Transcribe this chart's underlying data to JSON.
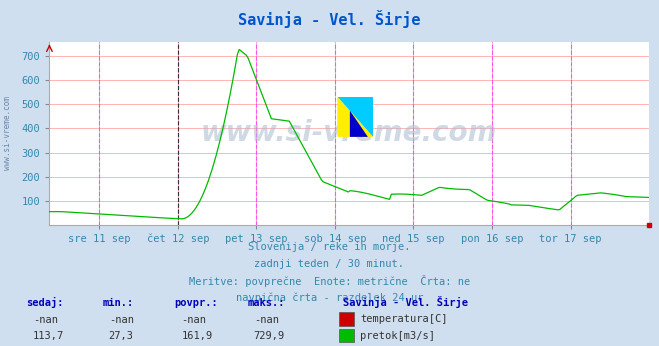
{
  "title": "Savinja - Vel. Širje",
  "title_color": "#0055cc",
  "bg_color": "#d0dff0",
  "plot_bg_color": "#ffffff",
  "grid_h_color": "#ffaaaa",
  "vline_color": "#ff44ff",
  "black_vline_pos": 0.2143,
  "xlabel_color": "#3388aa",
  "text_info_color": "#3388aa",
  "watermark": "www.si-vreme.com",
  "subtitle_lines": [
    "Slovenija / reke in morje.",
    "zadnji teden / 30 minut.",
    "Meritve: povprečne  Enote: metrične  Črta: ne",
    "navpična črta - razdelek 24 ur"
  ],
  "legend_title": "Savinja - Vel. Širje",
  "legend_entries": [
    {
      "label": "temperatura[C]",
      "color": "#cc0000"
    },
    {
      "label": "pretok[m3/s]",
      "color": "#00bb00"
    }
  ],
  "stats_headers": [
    "sedaj:",
    "min.:",
    "povpr.:",
    "maks.:"
  ],
  "stats_temp": [
    "-nan",
    "-nan",
    "-nan",
    "-nan"
  ],
  "stats_pretok": [
    "113,7",
    "27,3",
    "161,9",
    "729,9"
  ],
  "ylim": [
    0,
    760
  ],
  "yticks": [
    100,
    200,
    300,
    400,
    500,
    600,
    700
  ],
  "x_day_labels": [
    "sre 11 sep",
    "čet 12 sep",
    "pet 13 sep",
    "sob 14 sep",
    "ned 15 sep",
    "pon 16 sep",
    "tor 17 sep"
  ],
  "x_day_positions_norm": [
    0.0833,
    0.2143,
    0.3452,
    0.4762,
    0.6071,
    0.7381,
    0.869
  ],
  "vline_positions_norm": [
    0.0833,
    0.2143,
    0.3452,
    0.4762,
    0.6071,
    0.7381,
    0.869
  ]
}
